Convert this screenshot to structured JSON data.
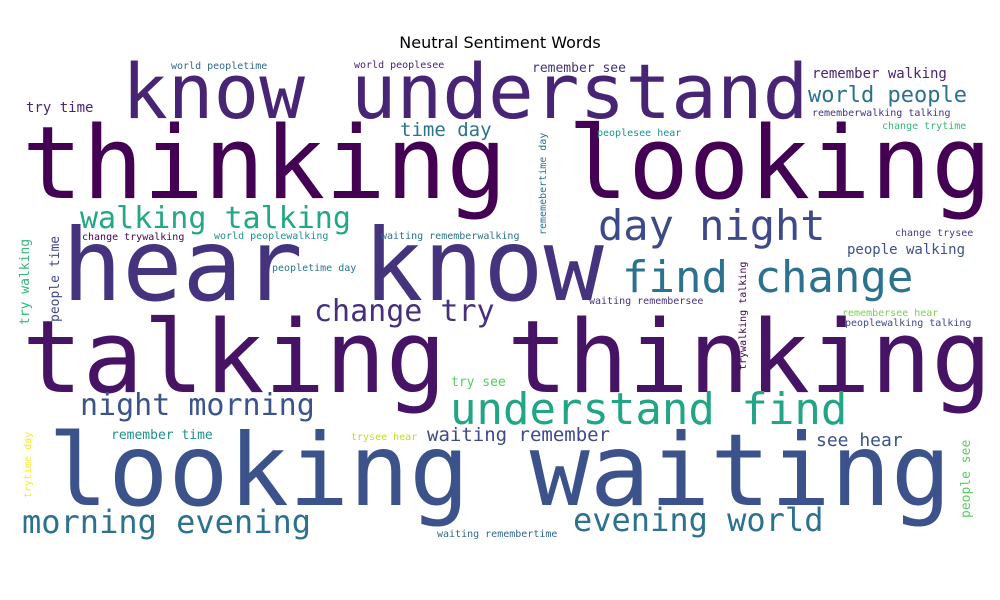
{
  "title": "Neutral Sentiment Words",
  "colors": {
    "background": "#ffffff",
    "title": "#000000"
  },
  "words": [
    {
      "text": "thinking looking",
      "color": "#440154"
    },
    {
      "text": "hear know",
      "color": "#46337e"
    },
    {
      "text": "talking thinking",
      "color": "#471365"
    },
    {
      "text": "looking waiting",
      "color": "#3b528b"
    },
    {
      "text": "know understand",
      "color": "#482475"
    },
    {
      "text": "understand find",
      "color": "#21a585"
    },
    {
      "text": "find change",
      "color": "#2c728e"
    },
    {
      "text": "day night",
      "color": "#3e4989"
    },
    {
      "text": "walking talking",
      "color": "#22a884"
    },
    {
      "text": "night morning",
      "color": "#3b528b"
    },
    {
      "text": "change try",
      "color": "#472f7d"
    },
    {
      "text": "morning evening",
      "color": "#2c728e"
    },
    {
      "text": "evening world",
      "color": "#2c728e"
    },
    {
      "text": "world people",
      "color": "#2c728e"
    },
    {
      "text": "time day",
      "color": "#2c728e"
    },
    {
      "text": "waiting remember",
      "color": "#3e4989"
    },
    {
      "text": "see hear",
      "color": "#3b528b"
    },
    {
      "text": "remember walking",
      "color": "#482475"
    },
    {
      "text": "people walking",
      "color": "#3b528b"
    },
    {
      "text": "try time",
      "color": "#482475"
    },
    {
      "text": "remember see",
      "color": "#46337e"
    },
    {
      "text": "try see",
      "color": "#5ec962"
    },
    {
      "text": "remember time",
      "color": "#21918c"
    },
    {
      "text": "world peopletime",
      "color": "#31688e"
    },
    {
      "text": "world peoplesee",
      "color": "#482475"
    },
    {
      "text": "rememberwalking talking",
      "color": "#46337e"
    },
    {
      "text": "change trytime",
      "color": "#35b779"
    },
    {
      "text": "peoplesee hear",
      "color": "#21918c"
    },
    {
      "text": "change trywalking",
      "color": "#440154"
    },
    {
      "text": "world peoplewalking",
      "color": "#21918c"
    },
    {
      "text": "waiting rememberwalking",
      "color": "#2c728e"
    },
    {
      "text": "change trysee",
      "color": "#433e85"
    },
    {
      "text": "peopletime day",
      "color": "#2c728e"
    },
    {
      "text": "waiting remembersee",
      "color": "#46337e"
    },
    {
      "text": "remembersee hear",
      "color": "#7ad151"
    },
    {
      "text": "peoplewalking talking",
      "color": "#3e4989"
    },
    {
      "text": "trysee hear",
      "color": "#bddf26"
    },
    {
      "text": "waiting remembertime",
      "color": "#31688e"
    },
    {
      "text": "rememebertime day",
      "color": "#2c728e"
    },
    {
      "text": "try walking",
      "color": "#35b779"
    },
    {
      "text": "people time",
      "color": "#3e4989"
    },
    {
      "text": "trytime day",
      "color": "#fde725"
    },
    {
      "text": "trywalking talking",
      "color": "#440154"
    },
    {
      "text": "people see",
      "color": "#5ec962"
    }
  ]
}
